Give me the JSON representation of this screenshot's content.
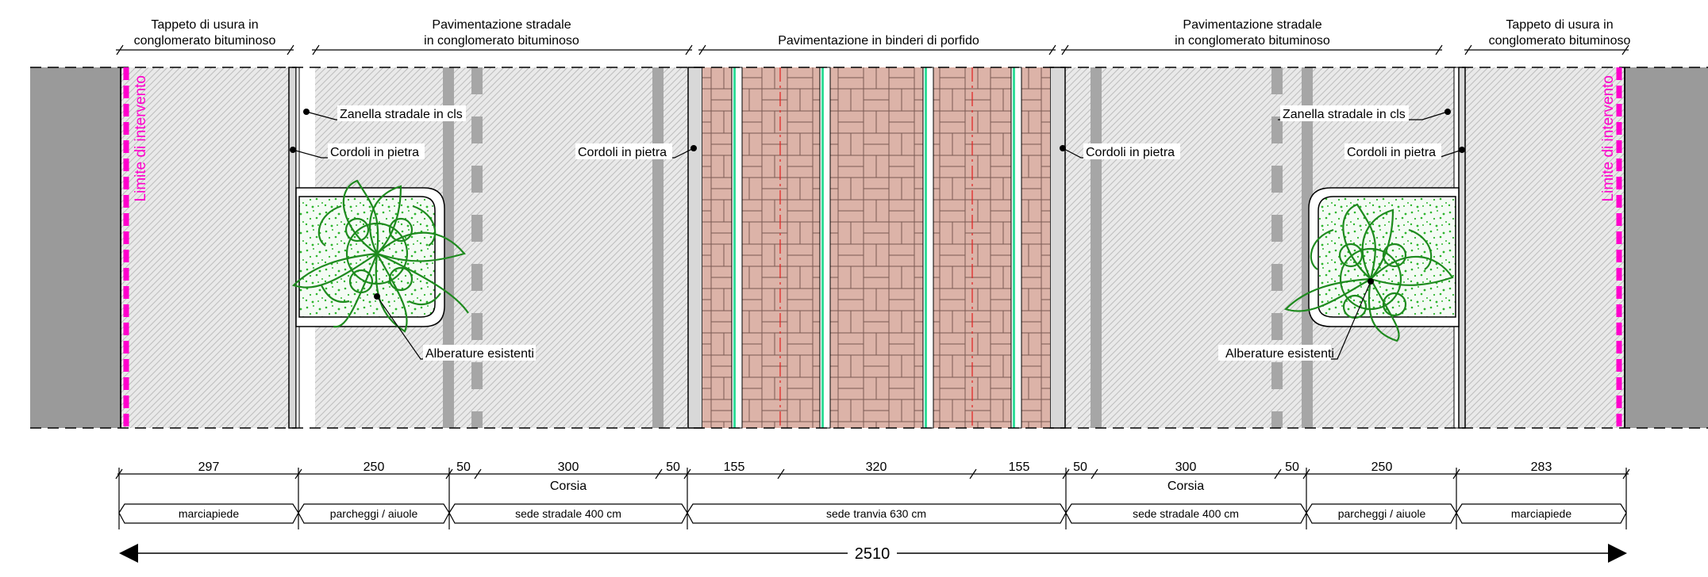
{
  "top_labels": [
    {
      "line1": "Tappeto di usura in",
      "line2": "conglomerato bituminoso"
    },
    {
      "line1": "Pavimentazione stradale",
      "line2": "in conglomerato bituminoso"
    },
    {
      "line1": "Pavimentazione in binderi di porfido",
      "line2": ""
    },
    {
      "line1": "Pavimentazione stradale",
      "line2": "in conglomerato bituminoso"
    },
    {
      "line1": "Tappeto di usura in",
      "line2": "conglomerato bituminoso"
    }
  ],
  "callouts": {
    "zanella": "Zanella stradale in cls",
    "cordoli": "Cordoli in pietra",
    "alberature": "Alberature esistenti"
  },
  "limite": "Limite di intervento",
  "dimensions": [
    "297",
    "250",
    "50",
    "300",
    "50",
    "155",
    "320",
    "155",
    "50",
    "300",
    "50",
    "250",
    "283"
  ],
  "corsia": "Corsia",
  "zones": [
    "marciapiede",
    "parcheggi / aiuole",
    "sede stradale 400 cm",
    "sede tranvia 630 cm",
    "sede stradale 400 cm",
    "parcheggi / aiuole",
    "marciapiede"
  ],
  "total": "2510",
  "colors": {
    "asphalt": "#e6e6e6",
    "outer_band": "#9a9a9a",
    "porphyry": "#dcb3a8",
    "rail": "#33dd99",
    "limit_line": "#ff00cc",
    "tree": "#1e8a1e"
  }
}
